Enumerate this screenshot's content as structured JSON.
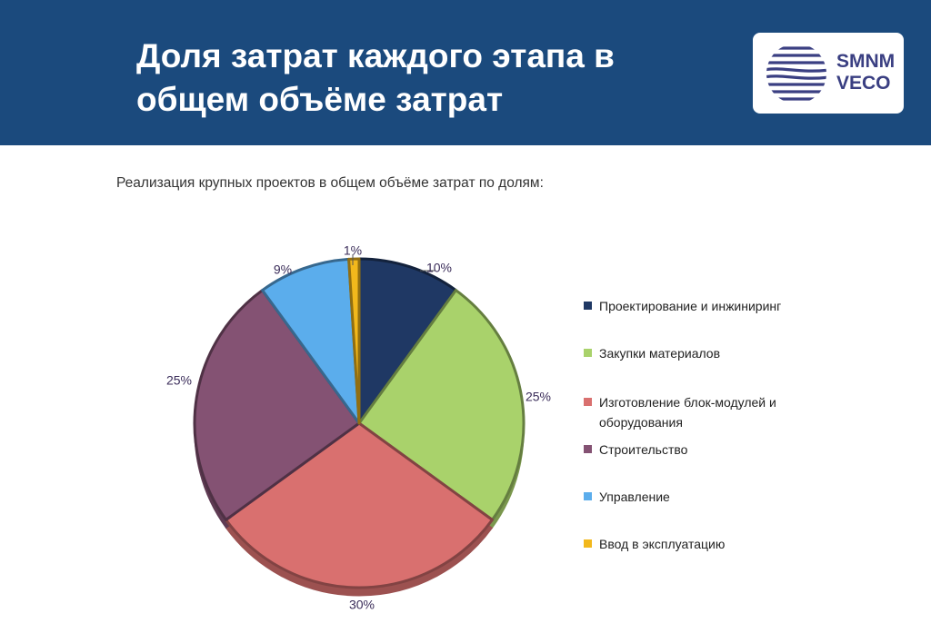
{
  "header": {
    "title": "Доля затрат каждого этапа в общем объёме затрат",
    "logo_text_line1": "SMNM",
    "logo_text_line2": "VECO"
  },
  "subtitle": "Реализация крупных проектов в общем объёме затрат по долям:",
  "colors": {
    "header_bg": "#1b4a7d",
    "label_text": "#3b2d5a"
  },
  "chart_data": {
    "type": "pie",
    "title": "",
    "start": "12 o'clock, clockwise",
    "legend_position": "right",
    "slices": [
      {
        "label": "Проектирование и инжиниринг",
        "value": 10,
        "display": "10%",
        "color": "#1f3864"
      },
      {
        "label": "Закупки материалов",
        "value": 25,
        "display": "25%",
        "color": "#a9d26b"
      },
      {
        "label": "Изготовление блок-модулей и оборудования",
        "value": 30,
        "display": "30%",
        "color": "#d9706f"
      },
      {
        "label": "Строительство",
        "value": 25,
        "display": "25%",
        "color": "#845273"
      },
      {
        "label": "Управление",
        "value": 9,
        "display": "9%",
        "color": "#5badec"
      },
      {
        "label": "Ввод в эксплуатацию",
        "value": 1,
        "display": "1%",
        "color": "#f2b81c"
      }
    ]
  }
}
